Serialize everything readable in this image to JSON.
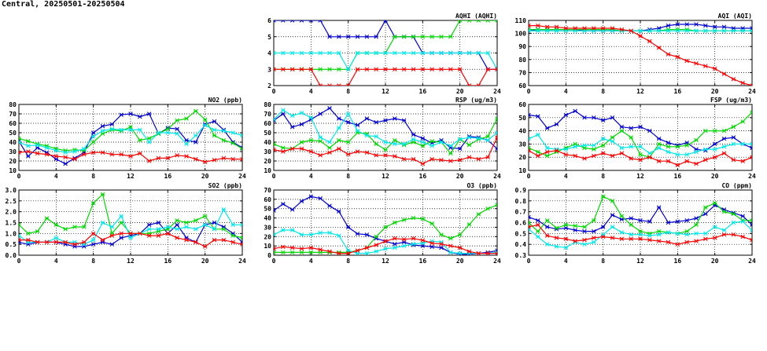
{
  "header": {
    "title": "Central, 20250501-20250504"
  },
  "series_colors": [
    "#0000d0",
    "#00d800",
    "#00e8e8",
    "#ff0000"
  ],
  "chart_data": [
    {
      "type": "line",
      "title": "AQHI (AQHI)",
      "xlim": [
        0,
        24
      ],
      "ylim": [
        2,
        6
      ],
      "xticks": [
        0,
        4,
        8,
        12,
        16,
        20,
        24
      ],
      "yticks": [
        2,
        3,
        4,
        5,
        6
      ],
      "grid": true,
      "series": [
        {
          "values": [
            6,
            6,
            6,
            6,
            6,
            6,
            5,
            5,
            5,
            5,
            5,
            5,
            6,
            5,
            5,
            5,
            4,
            4,
            4,
            4,
            4,
            4,
            4,
            3,
            3
          ]
        },
        {
          "values": [
            3,
            3,
            3,
            3,
            3,
            3,
            3,
            3,
            3,
            4,
            4,
            4,
            4,
            5,
            5,
            5,
            5,
            5,
            5,
            5,
            6,
            6,
            6,
            6,
            6
          ]
        },
        {
          "values": [
            4,
            4,
            4,
            4,
            4,
            4,
            4,
            4,
            3,
            4,
            4,
            4,
            4,
            4,
            4,
            4,
            4,
            4,
            4,
            4,
            4,
            4,
            4,
            4,
            3
          ]
        },
        {
          "values": [
            3,
            3,
            3,
            3,
            3,
            2,
            2,
            2,
            2,
            3,
            3,
            3,
            3,
            3,
            3,
            3,
            3,
            3,
            3,
            3,
            3,
            2,
            2,
            3,
            3
          ]
        }
      ]
    },
    {
      "type": "line",
      "title": "AQI (AQI)",
      "xlim": [
        0,
        24
      ],
      "ylim": [
        60,
        110
      ],
      "xticks": [
        0,
        4,
        8,
        12,
        16,
        20,
        24
      ],
      "yticks": [
        60,
        70,
        80,
        90,
        100,
        110
      ],
      "grid": true,
      "series": [
        {
          "values": [
            102,
            103,
            103,
            103,
            103,
            103,
            102,
            102,
            102,
            102,
            102,
            102,
            102,
            103,
            104,
            106,
            107,
            107,
            107,
            106,
            105,
            105,
            104,
            104,
            104
          ]
        },
        {
          "values": [
            103,
            103,
            103,
            103,
            103,
            103,
            103,
            103,
            103,
            103,
            102,
            102,
            102,
            102,
            102,
            103,
            103,
            103,
            102,
            102,
            102,
            102,
            102,
            102,
            102
          ]
        },
        {
          "values": [
            102,
            102,
            102,
            102,
            102,
            102,
            102,
            102,
            102,
            102,
            102,
            102,
            102,
            102,
            102,
            102,
            102,
            102,
            102,
            102,
            102,
            102,
            102,
            102,
            102
          ]
        },
        {
          "values": [
            106,
            106,
            105,
            105,
            104,
            104,
            104,
            104,
            104,
            104,
            103,
            102,
            98,
            94,
            89,
            84,
            82,
            79,
            77,
            75,
            73,
            69,
            65,
            62,
            60
          ]
        }
      ]
    },
    {
      "type": "line",
      "title": "NO2 (ppb)",
      "xlim": [
        0,
        24
      ],
      "ylim": [
        10,
        80
      ],
      "xticks": [
        0,
        4,
        8,
        12,
        16,
        20,
        24
      ],
      "yticks": [
        10,
        20,
        30,
        40,
        50,
        60,
        70,
        80
      ],
      "grid": true,
      "series": [
        {
          "values": [
            41,
            25,
            34,
            29,
            22,
            17,
            23,
            29,
            50,
            57,
            59,
            69,
            70,
            67,
            70,
            49,
            55,
            54,
            42,
            40,
            59,
            62,
            53,
            40,
            34
          ]
        },
        {
          "values": [
            44,
            41,
            38,
            36,
            33,
            31,
            32,
            31,
            40,
            49,
            53,
            52,
            56,
            42,
            44,
            49,
            54,
            63,
            65,
            73,
            64,
            47,
            42,
            39,
            33
          ]
        },
        {
          "values": [
            40,
            36,
            37,
            34,
            31,
            29,
            30,
            33,
            46,
            52,
            54,
            53,
            53,
            53,
            40,
            50,
            50,
            49,
            38,
            47,
            58,
            53,
            52,
            50,
            47
          ]
        },
        {
          "values": [
            29,
            30,
            28,
            27,
            25,
            24,
            22,
            27,
            29,
            29,
            27,
            27,
            25,
            28,
            20,
            23,
            23,
            26,
            25,
            22,
            19,
            21,
            23,
            22,
            22
          ]
        }
      ]
    },
    {
      "type": "line",
      "title": "RSP (ug/m3)",
      "xlim": [
        0,
        24
      ],
      "ylim": [
        10,
        80
      ],
      "xticks": [
        0,
        4,
        8,
        12,
        16,
        20,
        24
      ],
      "yticks": [
        10,
        20,
        30,
        40,
        50,
        60,
        70,
        80
      ],
      "grid": true,
      "series": [
        {
          "values": [
            63,
            70,
            56,
            59,
            64,
            70,
            76,
            65,
            61,
            58,
            65,
            61,
            63,
            65,
            63,
            48,
            44,
            39,
            42,
            34,
            33,
            46,
            45,
            42,
            33
          ]
        },
        {
          "values": [
            38,
            34,
            33,
            40,
            42,
            41,
            34,
            42,
            40,
            50,
            49,
            38,
            32,
            42,
            37,
            40,
            36,
            41,
            40,
            28,
            43,
            37,
            43,
            46,
            65
          ]
        },
        {
          "values": [
            64,
            74,
            68,
            71,
            66,
            45,
            40,
            55,
            70,
            52,
            47,
            46,
            40,
            38,
            38,
            43,
            40,
            36,
            40,
            36,
            43,
            45,
            44,
            42,
            50
          ]
        },
        {
          "values": [
            32,
            30,
            33,
            33,
            30,
            26,
            29,
            33,
            27,
            30,
            29,
            26,
            26,
            25,
            22,
            22,
            17,
            22,
            21,
            20,
            21,
            24,
            22,
            24,
            45
          ]
        }
      ]
    },
    {
      "type": "line",
      "title": "FSP (ug/m3)",
      "xlim": [
        0,
        24
      ],
      "ylim": [
        10,
        60
      ],
      "xticks": [
        0,
        4,
        8,
        12,
        16,
        20,
        24
      ],
      "yticks": [
        10,
        20,
        30,
        40,
        50,
        60
      ],
      "grid": true,
      "series": [
        {
          "values": [
            52,
            51,
            42,
            45,
            52,
            55,
            50,
            50,
            48,
            50,
            43,
            42,
            43,
            40,
            34,
            31,
            29,
            31,
            26,
            25,
            30,
            34,
            35,
            30,
            27
          ]
        },
        {
          "values": [
            27,
            24,
            21,
            24,
            27,
            30,
            27,
            26,
            29,
            35,
            40,
            35,
            22,
            20,
            30,
            28,
            28,
            29,
            33,
            40,
            40,
            40,
            43,
            47,
            54
          ]
        },
        {
          "values": [
            34,
            37,
            27,
            26,
            26,
            28,
            29,
            29,
            34,
            32,
            27,
            28,
            28,
            23,
            27,
            24,
            22,
            22,
            24,
            26,
            26,
            28,
            30,
            30,
            30
          ]
        },
        {
          "values": [
            25,
            21,
            24,
            25,
            22,
            21,
            19,
            21,
            23,
            21,
            23,
            19,
            18,
            20,
            17,
            17,
            14,
            17,
            15,
            18,
            20,
            23,
            18,
            17,
            20
          ]
        }
      ]
    },
    {
      "type": "line",
      "title": "SO2 (ppb)",
      "xlim": [
        0,
        24
      ],
      "ylim": [
        0,
        3
      ],
      "xticks": [
        0,
        4,
        8,
        12,
        16,
        20,
        24
      ],
      "yticks": [
        0.0,
        0.5,
        1.0,
        1.5,
        2.0,
        2.5,
        3.0
      ],
      "grid": true,
      "series": [
        {
          "values": [
            0.6,
            0.5,
            0.6,
            0.6,
            0.6,
            0.5,
            0.4,
            0.4,
            0.5,
            0.6,
            0.5,
            0.8,
            0.9,
            1.0,
            1.4,
            1.5,
            1.0,
            1.4,
            0.8,
            0.6,
            1.4,
            1.5,
            1.3,
            1.0,
            0.6
          ]
        },
        {
          "values": [
            1.4,
            1.0,
            1.1,
            1.7,
            1.4,
            1.2,
            1.3,
            1.3,
            2.4,
            2.8,
            1.0,
            1.5,
            1.0,
            1.0,
            1.0,
            1.1,
            1.2,
            1.6,
            1.5,
            1.6,
            1.8,
            1.2,
            1.2,
            0.9,
            0.8
          ]
        },
        {
          "values": [
            0.9,
            0.6,
            0.6,
            0.6,
            0.8,
            0.6,
            0.6,
            0.5,
            0.7,
            1.5,
            1.3,
            1.8,
            0.8,
            1.0,
            1.2,
            1.2,
            1.3,
            1.2,
            1.3,
            1.2,
            1.4,
            1.2,
            2.1,
            1.4,
            1.4
          ]
        },
        {
          "values": [
            0.7,
            0.7,
            0.6,
            0.6,
            0.6,
            0.6,
            0.5,
            0.6,
            1.0,
            0.7,
            0.9,
            1.0,
            1.0,
            1.0,
            0.9,
            0.9,
            1.0,
            0.8,
            0.7,
            0.6,
            0.4,
            0.7,
            0.7,
            0.6,
            0.5
          ]
        }
      ]
    },
    {
      "type": "line",
      "title": "O3 (ppb)",
      "xlim": [
        0,
        24
      ],
      "ylim": [
        0,
        70
      ],
      "xticks": [
        0,
        4,
        8,
        12,
        16,
        20,
        24
      ],
      "yticks": [
        0,
        10,
        20,
        30,
        40,
        50,
        60,
        70
      ],
      "grid": true,
      "series": [
        {
          "values": [
            48,
            55,
            49,
            58,
            63,
            61,
            53,
            47,
            30,
            23,
            22,
            18,
            15,
            12,
            14,
            11,
            10,
            9,
            8,
            3,
            1,
            1,
            2,
            3,
            5
          ]
        },
        {
          "values": [
            3,
            3,
            3,
            3,
            3,
            3,
            3,
            3,
            3,
            5,
            8,
            20,
            30,
            35,
            38,
            40,
            39,
            34,
            22,
            18,
            22,
            33,
            44,
            50,
            54
          ]
        },
        {
          "values": [
            22,
            27,
            27,
            22,
            22,
            24,
            24,
            21,
            5,
            2,
            2,
            4,
            7,
            8,
            10,
            12,
            13,
            15,
            14,
            3,
            2,
            2,
            2,
            2,
            3
          ]
        },
        {
          "values": [
            7,
            9,
            8,
            7,
            8,
            6,
            4,
            2,
            2,
            5,
            8,
            11,
            15,
            18,
            17,
            18,
            16,
            13,
            12,
            10,
            8,
            4,
            2,
            2,
            2
          ]
        }
      ]
    },
    {
      "type": "line",
      "title": "CO (ppm)",
      "xlim": [
        0,
        24
      ],
      "ylim": [
        0.3,
        0.9
      ],
      "xticks": [
        0,
        4,
        8,
        12,
        16,
        20,
        24
      ],
      "yticks": [
        0.3,
        0.4,
        0.5,
        0.6,
        0.7,
        0.8,
        0.9
      ],
      "grid": true,
      "series": [
        {
          "values": [
            0.65,
            0.62,
            0.56,
            0.54,
            0.55,
            0.53,
            0.52,
            0.52,
            0.56,
            0.67,
            0.63,
            0.64,
            0.62,
            0.61,
            0.74,
            0.6,
            0.61,
            0.62,
            0.64,
            0.68,
            0.76,
            0.72,
            0.69,
            0.66,
            0.58
          ]
        },
        {
          "values": [
            0.6,
            0.52,
            0.62,
            0.55,
            0.58,
            0.57,
            0.56,
            0.62,
            0.84,
            0.8,
            0.66,
            0.58,
            0.52,
            0.5,
            0.52,
            0.51,
            0.5,
            0.52,
            0.58,
            0.74,
            0.78,
            0.7,
            0.68,
            0.62,
            0.62
          ]
        },
        {
          "values": [
            0.54,
            0.47,
            0.4,
            0.38,
            0.37,
            0.42,
            0.4,
            0.42,
            0.49,
            0.56,
            0.51,
            0.49,
            0.49,
            0.48,
            0.49,
            0.51,
            0.5,
            0.49,
            0.5,
            0.5,
            0.56,
            0.53,
            0.6,
            0.61,
            0.53
          ]
        },
        {
          "values": [
            0.56,
            0.58,
            0.48,
            0.46,
            0.45,
            0.43,
            0.44,
            0.46,
            0.47,
            0.46,
            0.45,
            0.45,
            0.45,
            0.44,
            0.43,
            0.42,
            0.4,
            0.42,
            0.43,
            0.45,
            0.46,
            0.49,
            0.49,
            0.47,
            0.44
          ]
        }
      ]
    }
  ]
}
